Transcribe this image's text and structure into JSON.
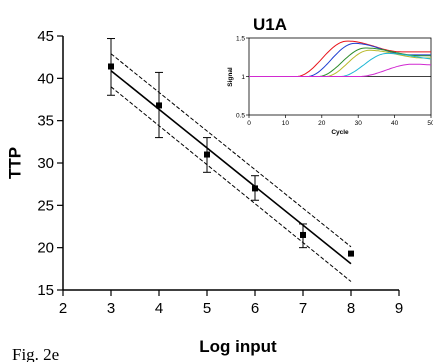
{
  "figure": {
    "caption": "Fig. 2e"
  },
  "chart_data": [
    {
      "type": "scatter",
      "title": "",
      "xlabel": "Log input",
      "ylabel": "TTP",
      "xlim": [
        2,
        9
      ],
      "ylim": [
        15,
        45
      ],
      "xticks": [
        2,
        3,
        4,
        5,
        6,
        7,
        8,
        9
      ],
      "yticks": [
        15,
        20,
        25,
        30,
        35,
        40,
        45
      ],
      "points": [
        {
          "x": 3,
          "y": 41.4,
          "err_low": 38.0,
          "err_high": 44.7
        },
        {
          "x": 4,
          "y": 36.8,
          "err_low": 33.0,
          "err_high": 40.7
        },
        {
          "x": 5,
          "y": 31.0,
          "err_low": 28.9,
          "err_high": 33.0
        },
        {
          "x": 6,
          "y": 27.0,
          "err_low": 25.6,
          "err_high": 28.5
        },
        {
          "x": 7,
          "y": 21.5,
          "err_low": 20.0,
          "err_high": 22.8
        },
        {
          "x": 8,
          "y": 19.3,
          "err_low": 19.3,
          "err_high": 19.3
        }
      ],
      "fit_line": {
        "x": [
          3,
          8
        ],
        "y": [
          40.9,
          18.1
        ]
      },
      "confidence_upper": {
        "x": [
          3,
          8
        ],
        "y": [
          42.9,
          20.1
        ]
      },
      "confidence_lower": {
        "x": [
          3,
          8
        ],
        "y": [
          39.0,
          16.0
        ]
      },
      "grid": false,
      "legend": "none",
      "colors": {
        "line": "#000000",
        "markers": "#000000"
      }
    },
    {
      "type": "line",
      "title": "U1A",
      "xlabel": "Cycle",
      "ylabel": "Signal",
      "xlim": [
        0,
        50
      ],
      "ylim": [
        0.5,
        1.5
      ],
      "xticks": [
        0,
        10,
        20,
        30,
        40,
        50
      ],
      "yticks": [
        0.5,
        1,
        1.5
      ],
      "curves": [
        {
          "color": "#e8141b",
          "onset": 13,
          "peak": 27,
          "max": 1.46,
          "plateau": 1.32
        },
        {
          "color": "#1f3fd1",
          "onset": 16,
          "peak": 29,
          "max": 1.43,
          "plateau": 1.28
        },
        {
          "color": "#2d8c2d",
          "onset": 19,
          "peak": 32,
          "max": 1.37,
          "plateau": 1.27
        },
        {
          "color": "#b9b92a",
          "onset": 21,
          "peak": 33,
          "max": 1.34,
          "plateau": 1.24
        },
        {
          "color": "#1fb7d4",
          "onset": 25,
          "peak": 38,
          "max": 1.3,
          "plateau": 1.22
        },
        {
          "color": "#d12ad1",
          "onset": 30,
          "peak": 45,
          "max": 1.16,
          "plateau": 1.12
        }
      ],
      "baseline": 1.0
    }
  ]
}
